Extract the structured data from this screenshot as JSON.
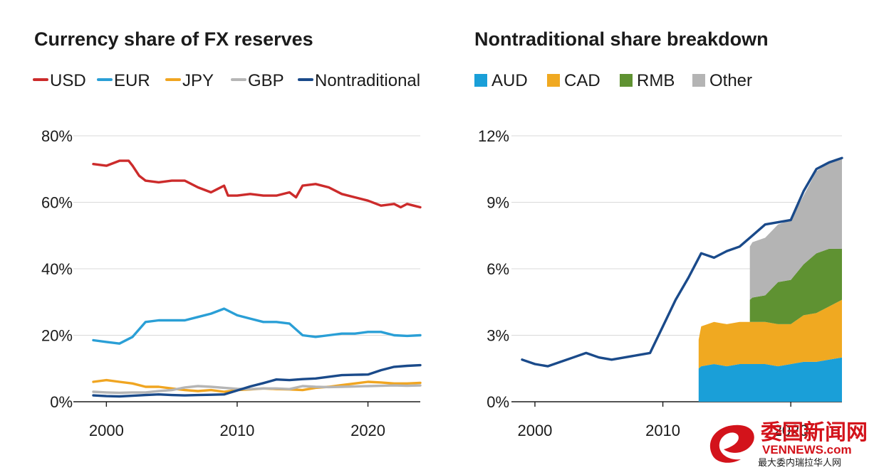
{
  "chart_data": [
    {
      "type": "line",
      "title": "Currency share of FX reserves",
      "xlabel": "",
      "ylabel": "",
      "xlim": [
        1999,
        2024
      ],
      "ylim": [
        0,
        80
      ],
      "yticks": [
        "0%",
        "20%",
        "40%",
        "60%",
        "80%"
      ],
      "xticks": [
        "2000",
        "2010",
        "2020"
      ],
      "legend_position": "top",
      "series": [
        {
          "name": "USD",
          "color": "#cc2b2b",
          "x": [
            1999,
            2000,
            2001,
            2001.7,
            2002,
            2002.5,
            2003,
            2004,
            2005,
            2006,
            2007,
            2008,
            2008.5,
            2009,
            2009.3,
            2010,
            2011,
            2012,
            2013,
            2014,
            2014.5,
            2015,
            2016,
            2017,
            2018,
            2019,
            2020,
            2021,
            2022,
            2022.5,
            2023,
            2023.5,
            2024
          ],
          "y": [
            71.5,
            71,
            72.5,
            72.5,
            71,
            68,
            66.5,
            66,
            66.5,
            66.5,
            64.5,
            63,
            64,
            65,
            62,
            62,
            62.5,
            62,
            62,
            63,
            61.5,
            65,
            65.5,
            64.5,
            62.5,
            61.5,
            60.5,
            59,
            59.5,
            58.5,
            59.5,
            59,
            58.5
          ]
        },
        {
          "name": "EUR",
          "color": "#2a9fd6",
          "x": [
            1999,
            2000,
            2001,
            2002,
            2003,
            2004,
            2005,
            2006,
            2007,
            2008,
            2009,
            2010,
            2011,
            2012,
            2013,
            2014,
            2015,
            2016,
            2017,
            2018,
            2019,
            2020,
            2021,
            2022,
            2023,
            2024
          ],
          "y": [
            18.5,
            18,
            17.5,
            19.5,
            24,
            24.5,
            24.5,
            24.5,
            25.5,
            26.5,
            28,
            26,
            25,
            24,
            24,
            23.5,
            20,
            19.5,
            20,
            20.5,
            20.5,
            21,
            21,
            20,
            19.8,
            20
          ]
        },
        {
          "name": "JPY",
          "color": "#f0a521",
          "x": [
            1999,
            2000,
            2001,
            2002,
            2003,
            2004,
            2005,
            2006,
            2007,
            2008,
            2009,
            2010,
            2011,
            2012,
            2013,
            2014,
            2015,
            2016,
            2017,
            2018,
            2019,
            2020,
            2021,
            2022,
            2023,
            2024
          ],
          "y": [
            6,
            6.5,
            6,
            5.5,
            4.5,
            4.5,
            4,
            3.5,
            3.2,
            3.5,
            3,
            3.5,
            3.7,
            4,
            3.8,
            3.7,
            3.5,
            4.2,
            4.5,
            5,
            5.5,
            6,
            5.8,
            5.5,
            5.5,
            5.7
          ]
        },
        {
          "name": "GBP",
          "color": "#b5b5b5",
          "x": [
            1999,
            2000,
            2001,
            2002,
            2003,
            2004,
            2005,
            2006,
            2007,
            2008,
            2009,
            2010,
            2011,
            2012,
            2013,
            2014,
            2015,
            2016,
            2017,
            2018,
            2019,
            2020,
            2021,
            2022,
            2023,
            2024
          ],
          "y": [
            3,
            2.8,
            2.7,
            2.8,
            2.8,
            3.2,
            3.5,
            4.3,
            4.7,
            4.5,
            4.2,
            3.9,
            3.8,
            4,
            4,
            3.8,
            4.7,
            4.5,
            4.4,
            4.5,
            4.6,
            4.7,
            4.8,
            4.9,
            4.8,
            4.9
          ]
        },
        {
          "name": "Nontraditional",
          "color": "#1a4a8a",
          "x": [
            1999,
            2000,
            2001,
            2002,
            2003,
            2004,
            2005,
            2006,
            2007,
            2008,
            2009,
            2010,
            2011,
            2012,
            2013,
            2014,
            2015,
            2016,
            2017,
            2018,
            2019,
            2020,
            2021,
            2022,
            2023,
            2024
          ],
          "y": [
            1.9,
            1.7,
            1.6,
            1.8,
            2,
            2.2,
            2,
            1.9,
            2,
            2.1,
            2.2,
            3.4,
            4.6,
            5.6,
            6.7,
            6.5,
            6.8,
            7,
            7.5,
            8,
            8.1,
            8.2,
            9.5,
            10.5,
            10.8,
            11
          ]
        }
      ]
    },
    {
      "type": "area",
      "title": "Nontraditional share breakdown",
      "xlabel": "",
      "ylabel": "",
      "xlim": [
        1999,
        2024
      ],
      "ylim": [
        0,
        12
      ],
      "yticks": [
        "0%",
        "3%",
        "6%",
        "9%",
        "12%"
      ],
      "xticks": [
        "2000",
        "2010",
        "2020"
      ],
      "legend_position": "top",
      "stack": [
        {
          "name": "AUD",
          "color": "#1a9fd8",
          "x": [
            2012.8,
            2013,
            2014,
            2015,
            2016,
            2017,
            2018,
            2019,
            2020,
            2021,
            2022,
            2023,
            2024
          ],
          "y": [
            1.5,
            1.6,
            1.7,
            1.6,
            1.7,
            1.7,
            1.7,
            1.6,
            1.7,
            1.8,
            1.8,
            1.9,
            2.0
          ]
        },
        {
          "name": "CAD",
          "color": "#f0a921",
          "x": [
            2012.8,
            2013,
            2014,
            2015,
            2016,
            2017,
            2018,
            2019,
            2020,
            2021,
            2022,
            2023,
            2024
          ],
          "y": [
            1.3,
            1.8,
            1.9,
            1.9,
            1.9,
            1.9,
            1.9,
            1.9,
            1.8,
            2.1,
            2.2,
            2.4,
            2.6
          ]
        },
        {
          "name": "RMB",
          "color": "#5f9232",
          "x": [
            2016.8,
            2017,
            2018,
            2019,
            2020,
            2021,
            2022,
            2023,
            2024
          ],
          "y": [
            1.0,
            1.1,
            1.2,
            1.9,
            2.0,
            2.3,
            2.7,
            2.6,
            2.3
          ]
        },
        {
          "name": "Other",
          "color": "#b4b4b4",
          "x": [
            2016.8,
            2017,
            2018,
            2019,
            2020,
            2021,
            2022,
            2023,
            2024
          ],
          "y": [
            2.4,
            2.5,
            2.6,
            2.6,
            2.7,
            3.1,
            3.7,
            3.9,
            4.1
          ]
        }
      ],
      "total_line": {
        "name": "Nontraditional",
        "color": "#1a4a8a",
        "x": [
          1999,
          2000,
          2001,
          2002,
          2003,
          2004,
          2005,
          2006,
          2007,
          2008,
          2009,
          2010,
          2011,
          2012,
          2013,
          2014,
          2015,
          2016,
          2017,
          2018,
          2019,
          2020,
          2021,
          2022,
          2023,
          2024
        ],
        "y": [
          1.9,
          1.7,
          1.6,
          1.8,
          2,
          2.2,
          2,
          1.9,
          2,
          2.1,
          2.2,
          3.4,
          4.6,
          5.6,
          6.7,
          6.5,
          6.8,
          7,
          7.5,
          8,
          8.1,
          8.2,
          9.5,
          10.5,
          10.8,
          11
        ]
      }
    }
  ],
  "watermark": {
    "chinese": "委国新闻网",
    "english": "VENNEWS.com",
    "subtitle": "最大委内瑞拉华人网",
    "color": "#d3131b"
  }
}
